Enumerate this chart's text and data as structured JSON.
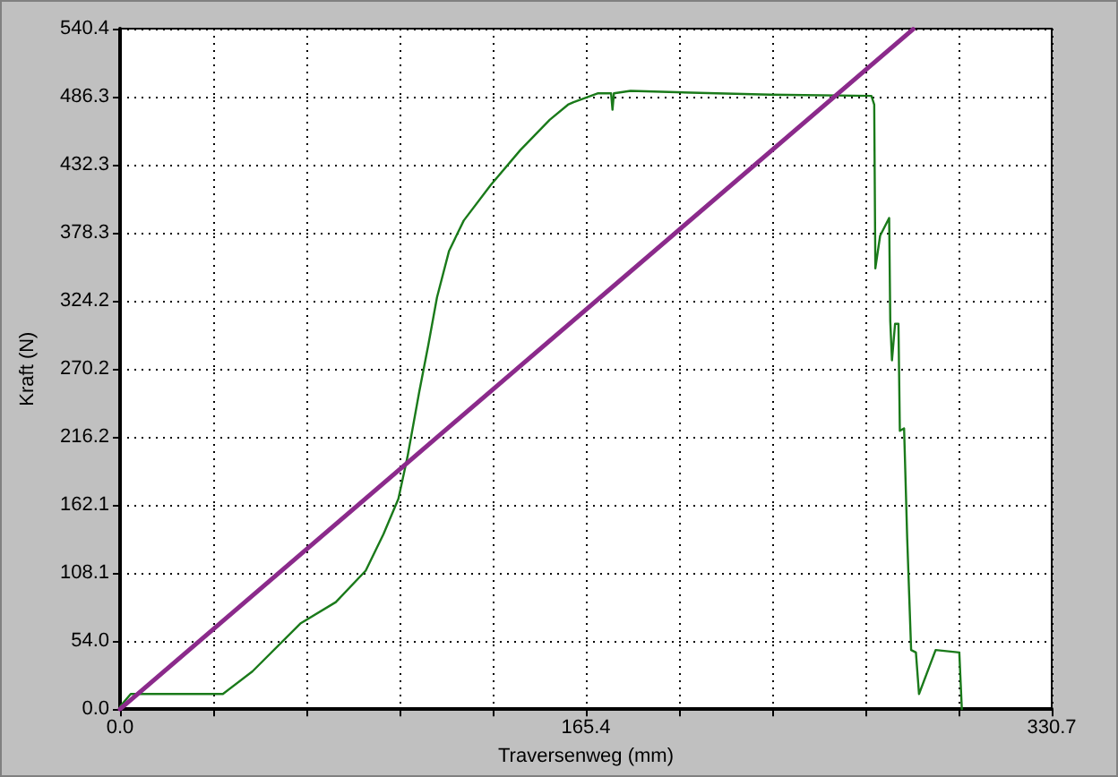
{
  "chart_data": {
    "type": "line",
    "xlabel": "Traversenweg (mm)",
    "ylabel": "Kraft (N)",
    "xlim": [
      0,
      330.7
    ],
    "xticks": [
      {
        "value": 0,
        "label": "0.0"
      },
      {
        "value": 33.07,
        "label": null
      },
      {
        "value": 66.14,
        "label": null
      },
      {
        "value": 99.21,
        "label": null
      },
      {
        "value": 132.28,
        "label": null
      },
      {
        "value": 165.35,
        "label": "165.4"
      },
      {
        "value": 198.42,
        "label": null
      },
      {
        "value": 231.49,
        "label": null
      },
      {
        "value": 264.56,
        "label": null
      },
      {
        "value": 297.63,
        "label": null
      },
      {
        "value": 330.7,
        "label": "330.7"
      }
    ],
    "ylim": [
      0,
      540.4
    ],
    "yticks": [
      {
        "value": 0,
        "label": "0.0"
      },
      {
        "value": 54.04,
        "label": "54.0"
      },
      {
        "value": 108.08,
        "label": "108.1"
      },
      {
        "value": 162.12,
        "label": "162.1"
      },
      {
        "value": 216.16,
        "label": "216.2"
      },
      {
        "value": 270.2,
        "label": "270.2"
      },
      {
        "value": 324.24,
        "label": "324.2"
      },
      {
        "value": 378.28,
        "label": "378.3"
      },
      {
        "value": 432.32,
        "label": "432.3"
      },
      {
        "value": 486.3,
        "label": "486.3"
      },
      {
        "value": 540.4,
        "label": "540.4"
      }
    ],
    "grid": true,
    "marker": "none",
    "line_style": "solid",
    "series": [
      {
        "color": "#1a7a1a",
        "x": [
          0,
          3.8,
          36.5,
          47,
          64,
          76.6,
          87.2,
          93.5,
          98.8,
          102,
          106.2,
          109.4,
          112.5,
          116.8,
          122,
          131.5,
          142.1,
          152.5,
          159,
          161,
          169.5,
          174.3,
          174.8,
          175.3,
          181.2,
          211.8,
          230.8,
          266.7,
          267.7,
          268.1,
          269.8,
          273,
          273.4,
          274,
          275.1,
          276.3,
          276.8,
          278.3,
          279.4,
          280.8,
          282.5,
          283.6,
          289.5,
          297.9,
          298.8
        ],
        "values": [
          2,
          12,
          12,
          30,
          68,
          85,
          110,
          139,
          167,
          200,
          252,
          289,
          327,
          364,
          388,
          416,
          444,
          468,
          480,
          482,
          489,
          489,
          476,
          489,
          491,
          489,
          488,
          487,
          480,
          350,
          376,
          390,
          308,
          277,
          306,
          306,
          221,
          223,
          136,
          47,
          45,
          12,
          47,
          45,
          0
        ]
      },
      {
        "color": "#8b2a8b",
        "x": [
          0,
          281.5
        ],
        "values": [
          0,
          540
        ]
      }
    ]
  }
}
